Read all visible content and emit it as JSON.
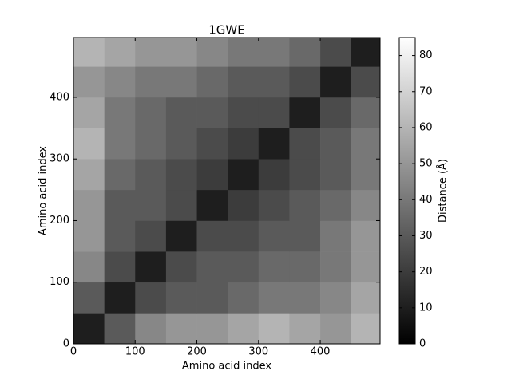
{
  "chart_data": {
    "type": "heatmap",
    "title": "1GWE",
    "x_label": "Amino acid index",
    "y_label": "Amino acid index",
    "colorbar_label": "Distance (Å)",
    "bins": [
      0,
      50,
      100,
      150,
      200,
      250,
      300,
      350,
      400,
      450,
      497
    ],
    "matrix": [
      [
        10,
        30,
        45,
        50,
        50,
        55,
        60,
        55,
        50,
        60
      ],
      [
        30,
        10,
        25,
        30,
        30,
        35,
        40,
        40,
        45,
        55
      ],
      [
        45,
        25,
        10,
        25,
        30,
        30,
        35,
        35,
        40,
        50
      ],
      [
        50,
        30,
        25,
        10,
        25,
        25,
        30,
        30,
        40,
        50
      ],
      [
        50,
        30,
        30,
        25,
        10,
        20,
        25,
        30,
        35,
        45
      ],
      [
        55,
        35,
        30,
        25,
        20,
        10,
        20,
        25,
        30,
        40
      ],
      [
        60,
        40,
        35,
        30,
        25,
        20,
        10,
        25,
        30,
        40
      ],
      [
        55,
        40,
        35,
        30,
        30,
        25,
        25,
        10,
        25,
        35
      ],
      [
        50,
        45,
        40,
        40,
        35,
        30,
        30,
        25,
        10,
        25
      ],
      [
        60,
        55,
        50,
        50,
        45,
        40,
        40,
        35,
        25,
        10
      ]
    ],
    "xlim": [
      0,
      497
    ],
    "ylim": [
      0,
      497
    ],
    "xticks": [
      0,
      100,
      200,
      300,
      400
    ],
    "yticks": [
      0,
      100,
      200,
      300,
      400
    ],
    "zlim": [
      0,
      85
    ],
    "zticks": [
      0,
      10,
      20,
      30,
      40,
      50,
      60,
      70,
      80
    ],
    "colormap": "gray"
  }
}
